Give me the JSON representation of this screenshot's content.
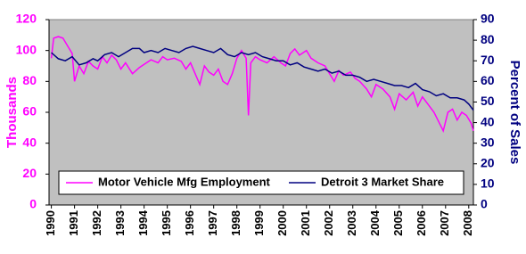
{
  "chart_data": {
    "type": "line",
    "y_label": "Thousands",
    "y2_label": "Percent of Sales",
    "xlim": [
      1989.9,
      2008.2
    ],
    "xticks": [
      1990,
      1991,
      1992,
      1993,
      1994,
      1995,
      1996,
      1997,
      1998,
      1999,
      2000,
      2001,
      2002,
      2003,
      2004,
      2005,
      2006,
      2007,
      2008
    ],
    "ylim": [
      0,
      120
    ],
    "yticks": [
      0,
      20,
      40,
      60,
      80,
      100,
      120
    ],
    "y2lim": [
      0,
      90
    ],
    "y2ticks": [
      0,
      10,
      20,
      30,
      40,
      50,
      60,
      70,
      80,
      90
    ],
    "grid": false,
    "legend": "lower center",
    "background": "#c0c0c0",
    "series": [
      {
        "name": "Motor Vehicle Mfg Employment",
        "color": "#ff00ff",
        "axis": "y",
        "x": [
          1990.0,
          1990.1,
          1990.3,
          1990.5,
          1990.7,
          1990.9,
          1991.0,
          1991.2,
          1991.4,
          1991.6,
          1991.8,
          1992.0,
          1992.2,
          1992.4,
          1992.6,
          1992.8,
          1993.0,
          1993.2,
          1993.5,
          1993.8,
          1994.0,
          1994.3,
          1994.6,
          1994.8,
          1995.0,
          1995.3,
          1995.6,
          1995.8,
          1996.0,
          1996.2,
          1996.4,
          1996.6,
          1996.8,
          1997.0,
          1997.2,
          1997.4,
          1997.6,
          1997.8,
          1998.0,
          1998.2,
          1998.4,
          1998.5,
          1998.6,
          1998.8,
          1999.0,
          1999.3,
          1999.6,
          1999.9,
          2000.1,
          2000.3,
          2000.5,
          2000.7,
          2001.0,
          2001.2,
          2001.5,
          2001.8,
          2002.0,
          2002.2,
          2002.4,
          2002.6,
          2002.9,
          2003.1,
          2003.3,
          2003.6,
          2003.8,
          2004.0,
          2004.3,
          2004.6,
          2004.8,
          2005.0,
          2005.3,
          2005.6,
          2005.8,
          2006.0,
          2006.2,
          2006.5,
          2006.7,
          2006.9,
          2007.1,
          2007.3,
          2007.5,
          2007.7,
          2007.9,
          2008.1,
          2008.2
        ],
        "values": [
          95,
          108,
          109,
          108,
          103,
          98,
          80,
          90,
          85,
          93,
          90,
          88,
          96,
          92,
          97,
          94,
          88,
          92,
          85,
          89,
          91,
          94,
          92,
          96,
          94,
          95,
          93,
          88,
          92,
          85,
          78,
          90,
          86,
          84,
          88,
          80,
          78,
          85,
          95,
          100,
          95,
          58,
          92,
          96,
          94,
          92,
          96,
          92,
          90,
          98,
          101,
          97,
          100,
          95,
          92,
          90,
          85,
          80,
          87,
          84,
          86,
          82,
          80,
          75,
          70,
          78,
          75,
          70,
          62,
          72,
          68,
          73,
          64,
          70,
          66,
          60,
          54,
          48,
          60,
          62,
          55,
          60,
          58,
          53,
          48
        ]
      },
      {
        "name": "Detroit 3 Market Share",
        "color": "#000080",
        "axis": "y2",
        "x": [
          1990.0,
          1990.3,
          1990.6,
          1990.9,
          1991.2,
          1991.5,
          1991.8,
          1992.0,
          1992.3,
          1992.6,
          1992.9,
          1993.2,
          1993.5,
          1993.8,
          1994.0,
          1994.3,
          1994.6,
          1994.9,
          1995.2,
          1995.5,
          1995.8,
          1996.1,
          1996.4,
          1996.7,
          1997.0,
          1997.3,
          1997.6,
          1997.9,
          1998.2,
          1998.5,
          1998.8,
          1999.1,
          1999.4,
          1999.7,
          2000.0,
          2000.3,
          2000.6,
          2000.9,
          2001.2,
          2001.5,
          2001.8,
          2002.1,
          2002.4,
          2002.7,
          2003.0,
          2003.3,
          2003.6,
          2003.9,
          2004.2,
          2004.5,
          2004.8,
          2005.1,
          2005.4,
          2005.7,
          2006.0,
          2006.3,
          2006.6,
          2006.9,
          2007.2,
          2007.5,
          2007.8,
          2008.0,
          2008.2
        ],
        "values": [
          74,
          71,
          70,
          72,
          68,
          69,
          71,
          70,
          73,
          74,
          72,
          74,
          76,
          76,
          74,
          75,
          74,
          76,
          75,
          74,
          76,
          77,
          76,
          75,
          74,
          76,
          73,
          72,
          74,
          73,
          74,
          72,
          71,
          70,
          70,
          68,
          69,
          67,
          66,
          65,
          66,
          64,
          65,
          63,
          63,
          62,
          60,
          61,
          60,
          59,
          58,
          58,
          57,
          59,
          56,
          55,
          53,
          54,
          52,
          52,
          51,
          49,
          46
        ]
      }
    ]
  }
}
